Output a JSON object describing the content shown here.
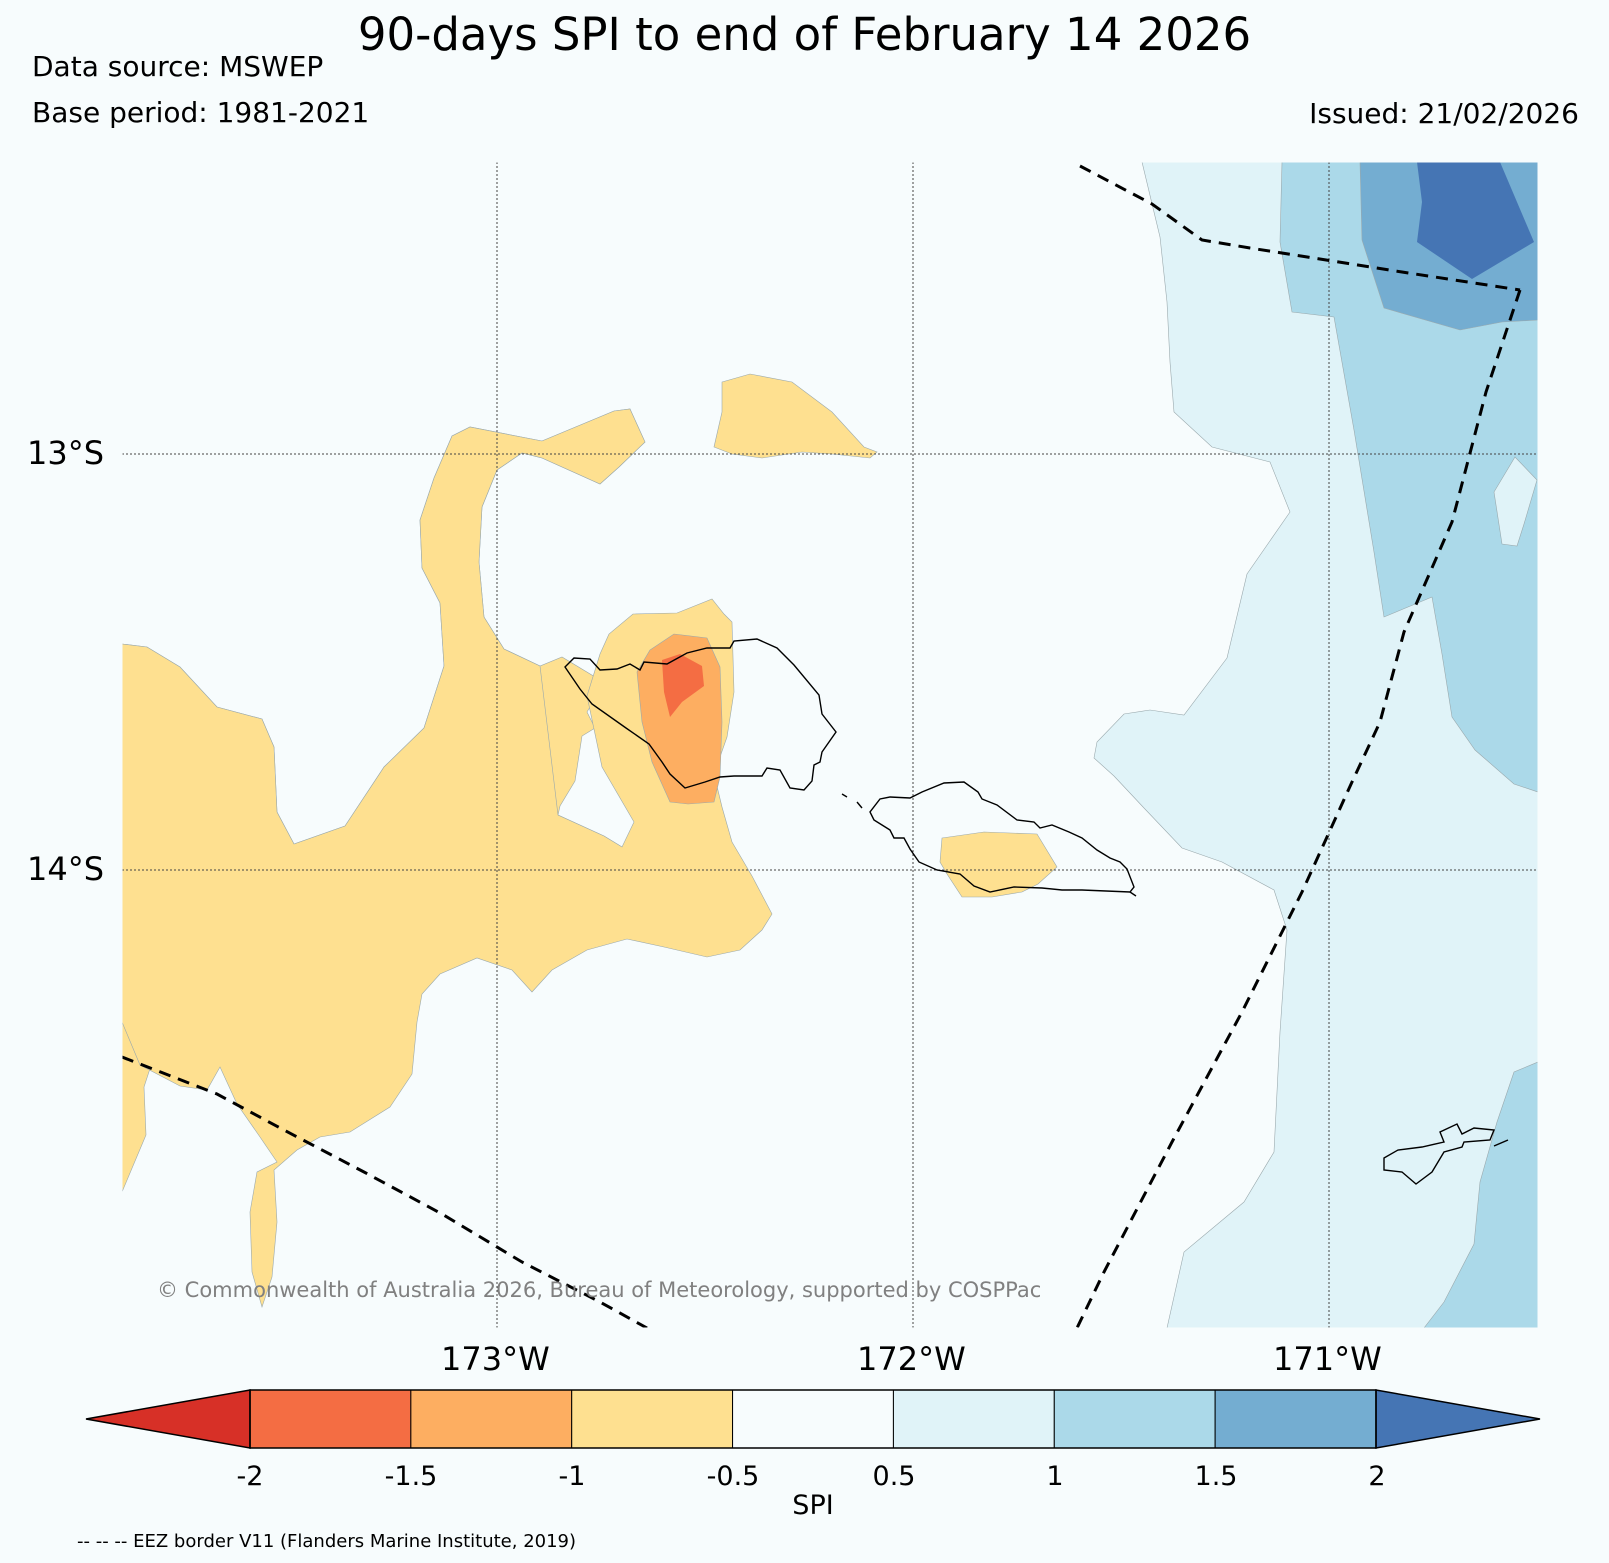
{
  "header": {
    "title": "90-days SPI to end of February 14 2026",
    "data_source": "Data source: MSWEP",
    "base_period": "Base period: 1981-2021",
    "issued": "Issued: 21/02/2026"
  },
  "map": {
    "latitude_labels": [
      "13°S",
      "14°S"
    ],
    "longitude_labels": [
      "173°W",
      "172°W",
      "171°W"
    ],
    "copyright": "© Commonwealth of Australia 2026, Bureau of Meteorology, supported by COSPPac"
  },
  "colorbar": {
    "label": "SPI",
    "ticks": [
      "-2",
      "-1.5",
      "-1",
      "-0.5",
      "0.5",
      "1",
      "1.5",
      "2"
    ],
    "colors": {
      "below_-2": "#d73027",
      "-2_to_-1.5": "#f46d43",
      "-1.5_to_-1": "#fdae61",
      "-1_to_-0.5": "#fee090",
      "-0.5_to_0.5": "#f7fcfd",
      "0.5_to_1": "#e0f3f8",
      "1_to_1.5": "#abd9e9",
      "1.5_to_2": "#74add1",
      "above_2": "#4575b4"
    }
  },
  "footnote": "-- -- -- EEZ border V11 (Flanders Marine Institute, 2019)"
}
